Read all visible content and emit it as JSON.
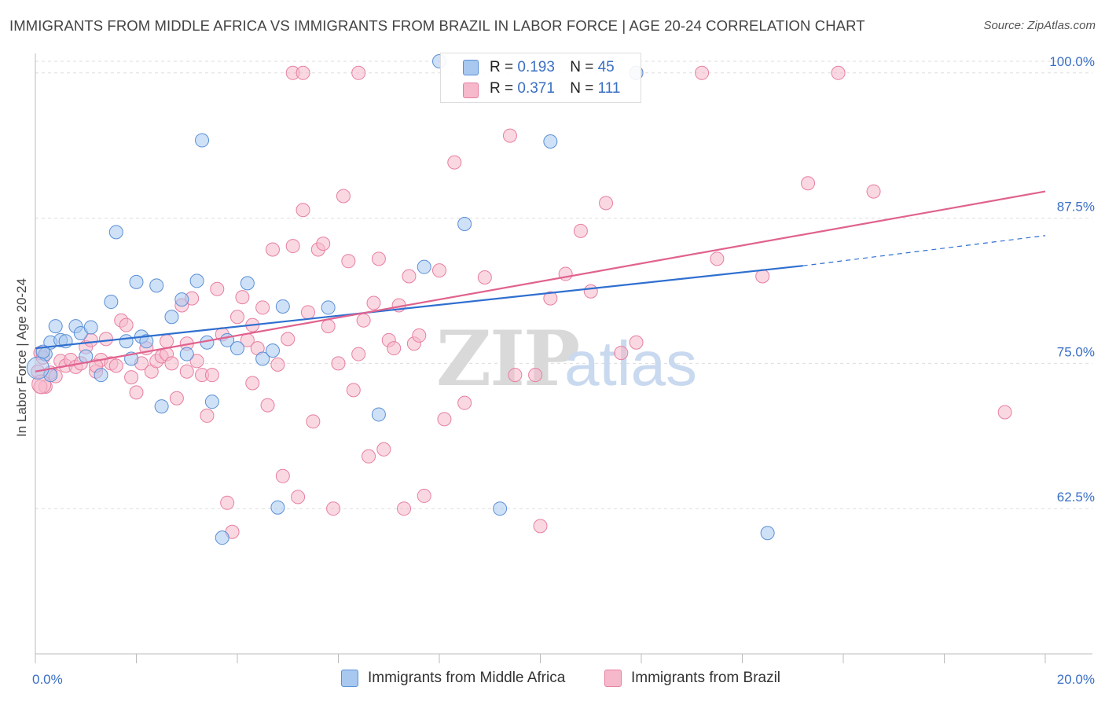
{
  "header": {
    "title": "IMMIGRANTS FROM MIDDLE AFRICA VS IMMIGRANTS FROM BRAZIL IN LABOR FORCE | AGE 20-24 CORRELATION CHART",
    "source": "Source: ZipAtlas.com"
  },
  "watermark": {
    "zip": "ZIP",
    "atlas": "atlas"
  },
  "legend": {
    "r_label": "R =",
    "n_label": "N =",
    "items": [
      {
        "r": "0.193",
        "n": "45",
        "color": "#a8c8f0"
      },
      {
        "r": "0.371",
        "n": "111",
        "color": "#f6b8cb"
      }
    ]
  },
  "colors": {
    "blue_fill": "#a8c8f0",
    "blue_stroke": "#5a8fd6",
    "blue_line": "#2f6fcf",
    "pink_fill": "#f6b8cb",
    "pink_stroke": "#e77fa0",
    "pink_line": "#e0628e",
    "grid": "#dddddd",
    "tick_label": "#3a6fc4"
  },
  "chart_data": {
    "type": "scatter",
    "title": "IMMIGRANTS FROM MIDDLE AFRICA VS IMMIGRANTS FROM BRAZIL IN LABOR FORCE | AGE 20-24 CORRELATION CHART",
    "xlabel": "",
    "ylabel": "In Labor Force | Age 20-24",
    "xlim": [
      0,
      20
    ],
    "ylim": [
      50,
      101
    ],
    "x_tick_labels": [
      "0.0%",
      "20.0%"
    ],
    "y_ticks": [
      62.5,
      75.0,
      87.5,
      100.0
    ],
    "y_tick_labels": [
      "62.5%",
      "75.0%",
      "87.5%",
      "100.0%"
    ],
    "grid": true,
    "legend_position": "top-center",
    "series": [
      {
        "name": "Immigrants from Middle Africa",
        "r": 0.193,
        "n": 45,
        "trend": {
          "x0": 0.0,
          "y0": 76.3,
          "x1": 15.2,
          "y1": 83.4,
          "dashed_to_x": 20.0,
          "dashed_to_y": 86.0
        },
        "points": [
          [
            0.2,
            75.8
          ],
          [
            0.3,
            76.8
          ],
          [
            0.4,
            78.2
          ],
          [
            0.5,
            77.0
          ],
          [
            0.6,
            76.9
          ],
          [
            0.8,
            78.2
          ],
          [
            0.9,
            77.6
          ],
          [
            1.0,
            75.6
          ],
          [
            1.1,
            78.1
          ],
          [
            1.3,
            74.0
          ],
          [
            1.5,
            80.3
          ],
          [
            1.6,
            86.3
          ],
          [
            1.8,
            76.9
          ],
          [
            1.9,
            75.4
          ],
          [
            2.0,
            82.0
          ],
          [
            2.1,
            77.3
          ],
          [
            2.2,
            76.9
          ],
          [
            2.4,
            81.7
          ],
          [
            2.5,
            71.3
          ],
          [
            2.7,
            79.0
          ],
          [
            2.9,
            80.5
          ],
          [
            3.0,
            75.8
          ],
          [
            3.2,
            82.1
          ],
          [
            3.3,
            94.2
          ],
          [
            3.4,
            76.8
          ],
          [
            3.5,
            71.7
          ],
          [
            3.7,
            60.0
          ],
          [
            3.8,
            77.0
          ],
          [
            4.0,
            76.3
          ],
          [
            4.2,
            81.9
          ],
          [
            4.5,
            75.4
          ],
          [
            4.7,
            76.1
          ],
          [
            4.8,
            62.6
          ],
          [
            4.9,
            79.9
          ],
          [
            5.8,
            79.8
          ],
          [
            6.8,
            70.6
          ],
          [
            7.7,
            83.3
          ],
          [
            8.5,
            87.0
          ],
          [
            9.2,
            62.5
          ],
          [
            10.2,
            94.1
          ],
          [
            11.9,
            100.0
          ],
          [
            14.5,
            60.4
          ],
          [
            8.0,
            101.0
          ],
          [
            0.3,
            74.0
          ],
          [
            0.15,
            76.0
          ]
        ]
      },
      {
        "name": "Immigrants from Brazil",
        "r": 0.371,
        "n": 111,
        "trend": {
          "x0": 0.0,
          "y0": 74.3,
          "x1": 20.0,
          "y1": 89.8
        },
        "points": [
          [
            0.1,
            75.9
          ],
          [
            0.2,
            73.0
          ],
          [
            0.3,
            74.2
          ],
          [
            0.4,
            73.9
          ],
          [
            0.5,
            75.2
          ],
          [
            0.6,
            74.8
          ],
          [
            0.7,
            75.3
          ],
          [
            0.8,
            74.7
          ],
          [
            0.9,
            75.0
          ],
          [
            1.0,
            76.4
          ],
          [
            1.1,
            77.0
          ],
          [
            1.2,
            74.3
          ],
          [
            1.3,
            75.3
          ],
          [
            1.4,
            77.1
          ],
          [
            1.5,
            75.0
          ],
          [
            1.6,
            74.8
          ],
          [
            1.7,
            78.7
          ],
          [
            1.8,
            78.3
          ],
          [
            1.9,
            73.8
          ],
          [
            2.0,
            72.5
          ],
          [
            2.1,
            75.0
          ],
          [
            2.2,
            76.3
          ],
          [
            2.3,
            74.3
          ],
          [
            2.4,
            75.2
          ],
          [
            2.5,
            75.6
          ],
          [
            2.6,
            75.8
          ],
          [
            2.7,
            75.0
          ],
          [
            2.8,
            72.0
          ],
          [
            2.9,
            80.0
          ],
          [
            3.0,
            76.7
          ],
          [
            3.1,
            80.6
          ],
          [
            3.2,
            75.2
          ],
          [
            3.3,
            74.0
          ],
          [
            3.4,
            70.5
          ],
          [
            3.5,
            74.0
          ],
          [
            3.6,
            81.4
          ],
          [
            3.7,
            77.5
          ],
          [
            3.8,
            63.0
          ],
          [
            3.9,
            60.5
          ],
          [
            4.0,
            79.0
          ],
          [
            4.1,
            80.7
          ],
          [
            4.2,
            77.0
          ],
          [
            4.3,
            73.3
          ],
          [
            4.4,
            76.3
          ],
          [
            4.5,
            79.8
          ],
          [
            4.6,
            71.4
          ],
          [
            4.7,
            84.8
          ],
          [
            4.8,
            74.9
          ],
          [
            4.9,
            65.3
          ],
          [
            5.0,
            77.1
          ],
          [
            5.1,
            85.1
          ],
          [
            5.2,
            63.5
          ],
          [
            5.3,
            88.2
          ],
          [
            5.4,
            79.4
          ],
          [
            5.5,
            70.0
          ],
          [
            5.6,
            84.8
          ],
          [
            5.7,
            85.3
          ],
          [
            5.8,
            78.2
          ],
          [
            5.9,
            62.5
          ],
          [
            6.0,
            75.0
          ],
          [
            6.1,
            89.4
          ],
          [
            6.2,
            83.8
          ],
          [
            6.3,
            72.7
          ],
          [
            6.4,
            75.8
          ],
          [
            6.5,
            78.7
          ],
          [
            6.6,
            67.0
          ],
          [
            6.7,
            80.2
          ],
          [
            6.8,
            84.0
          ],
          [
            6.9,
            67.6
          ],
          [
            7.0,
            77.0
          ],
          [
            7.1,
            76.3
          ],
          [
            7.2,
            80.0
          ],
          [
            7.3,
            62.5
          ],
          [
            7.4,
            82.5
          ],
          [
            7.5,
            76.7
          ],
          [
            7.6,
            77.4
          ],
          [
            7.7,
            63.6
          ],
          [
            8.0,
            83.0
          ],
          [
            8.1,
            70.2
          ],
          [
            8.3,
            92.3
          ],
          [
            8.5,
            71.6
          ],
          [
            8.9,
            82.4
          ],
          [
            9.4,
            94.6
          ],
          [
            9.5,
            74.0
          ],
          [
            10.0,
            61.0
          ],
          [
            10.2,
            80.6
          ],
          [
            10.5,
            82.7
          ],
          [
            10.8,
            86.4
          ],
          [
            11.0,
            81.2
          ],
          [
            11.3,
            88.8
          ],
          [
            11.6,
            75.9
          ],
          [
            11.9,
            76.8
          ],
          [
            13.5,
            84.0
          ],
          [
            14.4,
            82.5
          ],
          [
            15.3,
            90.5
          ],
          [
            16.6,
            89.8
          ],
          [
            19.2,
            70.8
          ],
          [
            5.1,
            100.0
          ],
          [
            5.3,
            100.0
          ],
          [
            6.4,
            100.0
          ],
          [
            11.9,
            100.0
          ],
          [
            13.2,
            100.0
          ],
          [
            15.9,
            100.0
          ],
          [
            0.05,
            74.3
          ],
          [
            0.1,
            73.0
          ],
          [
            0.15,
            75.5
          ],
          [
            1.2,
            74.8
          ],
          [
            2.6,
            76.9
          ],
          [
            3.0,
            74.3
          ],
          [
            9.9,
            74.0
          ],
          [
            4.3,
            78.3
          ]
        ]
      }
    ]
  },
  "bottom_legend": {
    "items": [
      {
        "label": "Immigrants from Middle Africa",
        "color": "#a8c8f0"
      },
      {
        "label": "Immigrants from Brazil",
        "color": "#f6b8cb"
      }
    ]
  }
}
